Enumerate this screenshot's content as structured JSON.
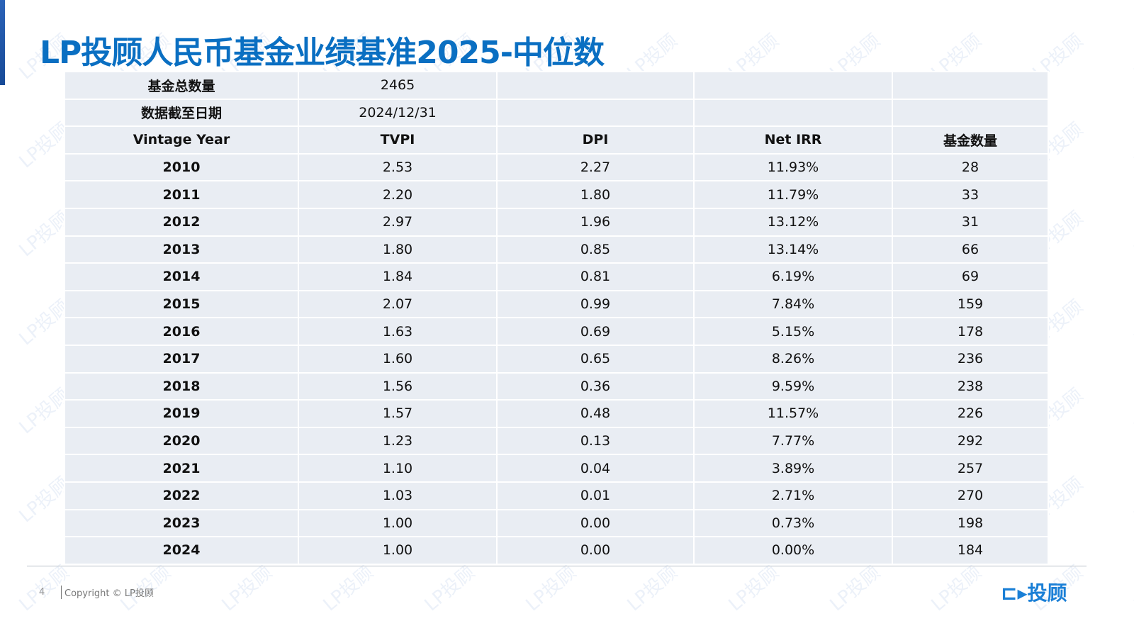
{
  "title": "LP投顾人民币基金业绩基准2025-中位数",
  "summary": [
    {
      "label": "基金总数量",
      "value": "2465"
    },
    {
      "label": "数据截至日期",
      "value": "2024/12/31"
    }
  ],
  "columns": [
    "Vintage Year",
    "TVPI",
    "DPI",
    "Net IRR",
    "基金数量"
  ],
  "rows": [
    [
      "2010",
      "2.53",
      "2.27",
      "11.93%",
      "28"
    ],
    [
      "2011",
      "2.20",
      "1.80",
      "11.79%",
      "33"
    ],
    [
      "2012",
      "2.97",
      "1.96",
      "13.12%",
      "31"
    ],
    [
      "2013",
      "1.80",
      "0.85",
      "13.14%",
      "66"
    ],
    [
      "2014",
      "1.84",
      "0.81",
      "6.19%",
      "69"
    ],
    [
      "2015",
      "2.07",
      "0.99",
      "7.84%",
      "159"
    ],
    [
      "2016",
      "1.63",
      "0.69",
      "5.15%",
      "178"
    ],
    [
      "2017",
      "1.60",
      "0.65",
      "8.26%",
      "236"
    ],
    [
      "2018",
      "1.56",
      "0.36",
      "9.59%",
      "238"
    ],
    [
      "2019",
      "1.57",
      "0.48",
      "11.57%",
      "226"
    ],
    [
      "2020",
      "1.23",
      "0.13",
      "7.77%",
      "292"
    ],
    [
      "2021",
      "1.10",
      "0.04",
      "3.89%",
      "257"
    ],
    [
      "2022",
      "1.03",
      "0.01",
      "2.71%",
      "270"
    ],
    [
      "2023",
      "1.00",
      "0.00",
      "0.73%",
      "198"
    ],
    [
      "2024",
      "1.00",
      "0.00",
      "0.00%",
      "184"
    ]
  ],
  "footer": {
    "page": "4",
    "copyright": "Copyright © LP投顾",
    "logo": "LP投顾",
    "watermark": "LP投顾"
  },
  "colors": {
    "title": "#0a6fc2",
    "table_bg": "#e9edf3"
  }
}
